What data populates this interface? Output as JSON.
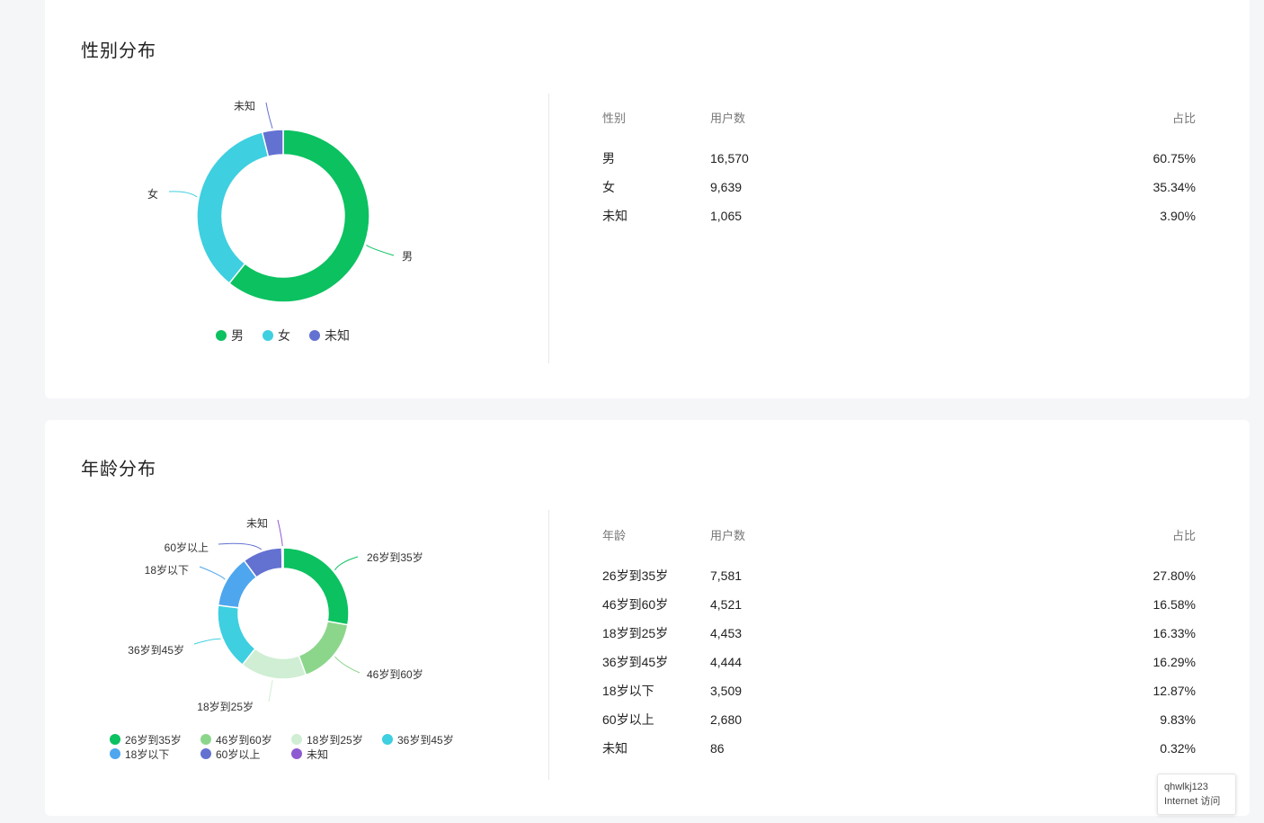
{
  "gender_section": {
    "title": "性别分布",
    "table": {
      "headers": [
        "性别",
        "用户数",
        "占比"
      ],
      "rows": [
        {
          "label": "男",
          "count": "16,570",
          "pct": "60.75%"
        },
        {
          "label": "女",
          "count": "9,639",
          "pct": "35.34%"
        },
        {
          "label": "未知",
          "count": "1,065",
          "pct": "3.90%"
        }
      ]
    }
  },
  "age_section": {
    "title": "年龄分布",
    "table": {
      "headers": [
        "年龄",
        "用户数",
        "占比"
      ],
      "rows": [
        {
          "label": "26岁到35岁",
          "count": "7,581",
          "pct": "27.80%"
        },
        {
          "label": "46岁到60岁",
          "count": "4,521",
          "pct": "16.58%"
        },
        {
          "label": "18岁到25岁",
          "count": "4,453",
          "pct": "16.33%"
        },
        {
          "label": "36岁到45岁",
          "count": "4,444",
          "pct": "16.29%"
        },
        {
          "label": "18岁以下",
          "count": "3,509",
          "pct": "12.87%"
        },
        {
          "label": "60岁以上",
          "count": "2,680",
          "pct": "9.83%"
        },
        {
          "label": "未知",
          "count": "86",
          "pct": "0.32%"
        }
      ]
    }
  },
  "chart_data": [
    {
      "type": "pie",
      "variant": "donut",
      "categories": [
        "男",
        "女",
        "未知"
      ],
      "values": [
        16570,
        9639,
        1065
      ],
      "colors": [
        "#0bc160",
        "#3ecfe0",
        "#6371d1"
      ],
      "legend": [
        "男",
        "女",
        "未知"
      ],
      "legend_placement": "bottom"
    },
    {
      "type": "pie",
      "variant": "donut",
      "categories": [
        "26岁到35岁",
        "46岁到60岁",
        "18岁到25岁",
        "36岁到45岁",
        "18岁以下",
        "60岁以上",
        "未知"
      ],
      "values": [
        7581,
        4521,
        4453,
        4444,
        3509,
        2680,
        86
      ],
      "colors": [
        "#0bc160",
        "#8cd68c",
        "#cfeed3",
        "#3ecfe0",
        "#4ea6ee",
        "#6371d1",
        "#8e5ad1"
      ],
      "legend": [
        "26岁到35岁",
        "46岁到60岁",
        "18岁到25岁",
        "36岁到45岁",
        "18岁以下",
        "60岁以上",
        "未知"
      ],
      "legend_placement": "bottom"
    }
  ],
  "tooltip": {
    "user": "qhwlkj123",
    "access": "Internet 访问"
  }
}
